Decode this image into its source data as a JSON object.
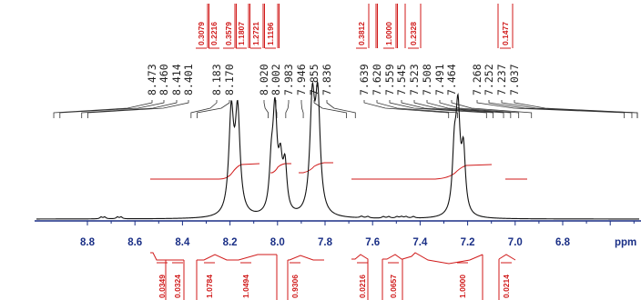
{
  "spectrum": {
    "axis_unit": "ppm",
    "axis_ticks": [
      "8.8",
      "8.6",
      "8.4",
      "8.2",
      "8.0",
      "7.8",
      "7.6",
      "7.4",
      "7.2",
      "7.0",
      "6.8"
    ],
    "peak_labels": [
      "8.473",
      "8.460",
      "8.414",
      "8.401",
      "8.183",
      "8.170",
      "8.020",
      "8.002",
      "7.983",
      "7.946",
      "7.855",
      "7.836",
      "7.639",
      "7.620",
      "7.559",
      "7.545",
      "7.523",
      "7.508",
      "7.491",
      "7.464",
      "7.268",
      "7.252",
      "7.237",
      "7.037"
    ],
    "top_integrals": [
      "0.3079",
      "0.2216",
      "0.3579",
      "1.1807",
      "1.2721",
      "1.1196",
      "0.3812",
      "1.0000",
      "0.2328",
      "0.1477"
    ],
    "bottom_integrals": [
      "0.0349",
      "0.0324",
      "1.0784",
      "1.0494",
      "0.9306",
      "0.0216",
      "0.0657",
      "1.0000",
      "0.0214"
    ],
    "colors": {
      "trace": "#111111",
      "integral": "#d01a1a",
      "axis": "#1a2f86"
    }
  }
}
